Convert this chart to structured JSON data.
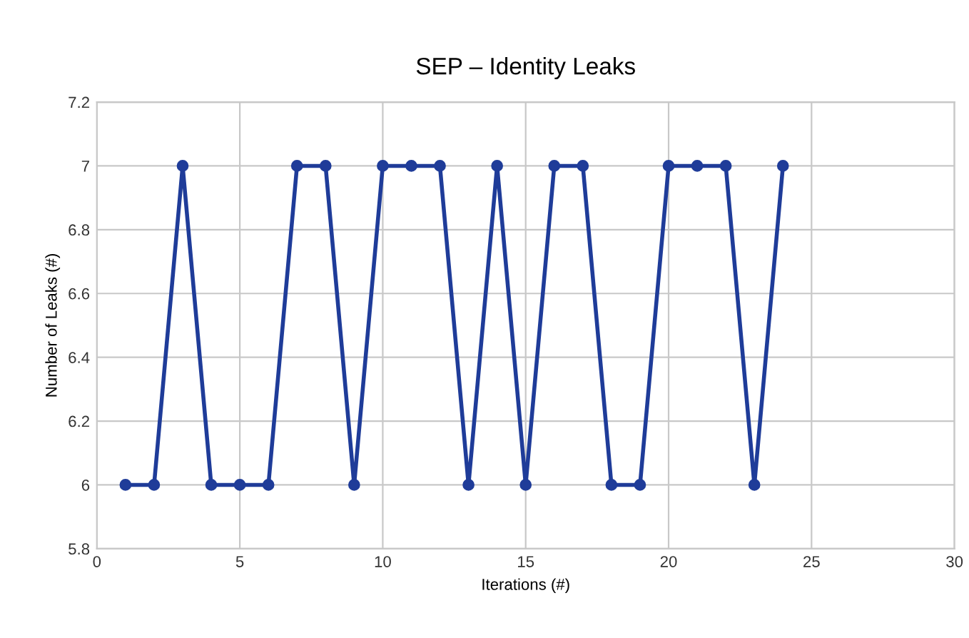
{
  "chart_data": {
    "type": "line",
    "title": "SEP – Identity Leaks",
    "xlabel": "Iterations (#)",
    "ylabel": "Number of Leaks (#)",
    "x": [
      1,
      2,
      3,
      4,
      5,
      6,
      7,
      8,
      9,
      10,
      11,
      12,
      13,
      14,
      15,
      16,
      17,
      18,
      19,
      20,
      21,
      22,
      23,
      24
    ],
    "series": [
      {
        "color": "#1f3c99",
        "values": [
          6,
          6,
          7,
          6,
          6,
          6,
          7,
          7,
          6,
          7,
          7,
          7,
          6,
          7,
          6,
          7,
          7,
          6,
          6,
          7,
          7,
          7,
          6,
          7
        ]
      }
    ],
    "xlim": [
      0,
      30
    ],
    "xticks": [
      0,
      5,
      10,
      15,
      20,
      25,
      30
    ],
    "ylim": [
      5.8,
      7.2
    ],
    "yticks": [
      5.8,
      6,
      6.2,
      6.4,
      6.6,
      6.8,
      7,
      7.2
    ],
    "grid": true,
    "marker": "circle",
    "line_style": "solid"
  }
}
